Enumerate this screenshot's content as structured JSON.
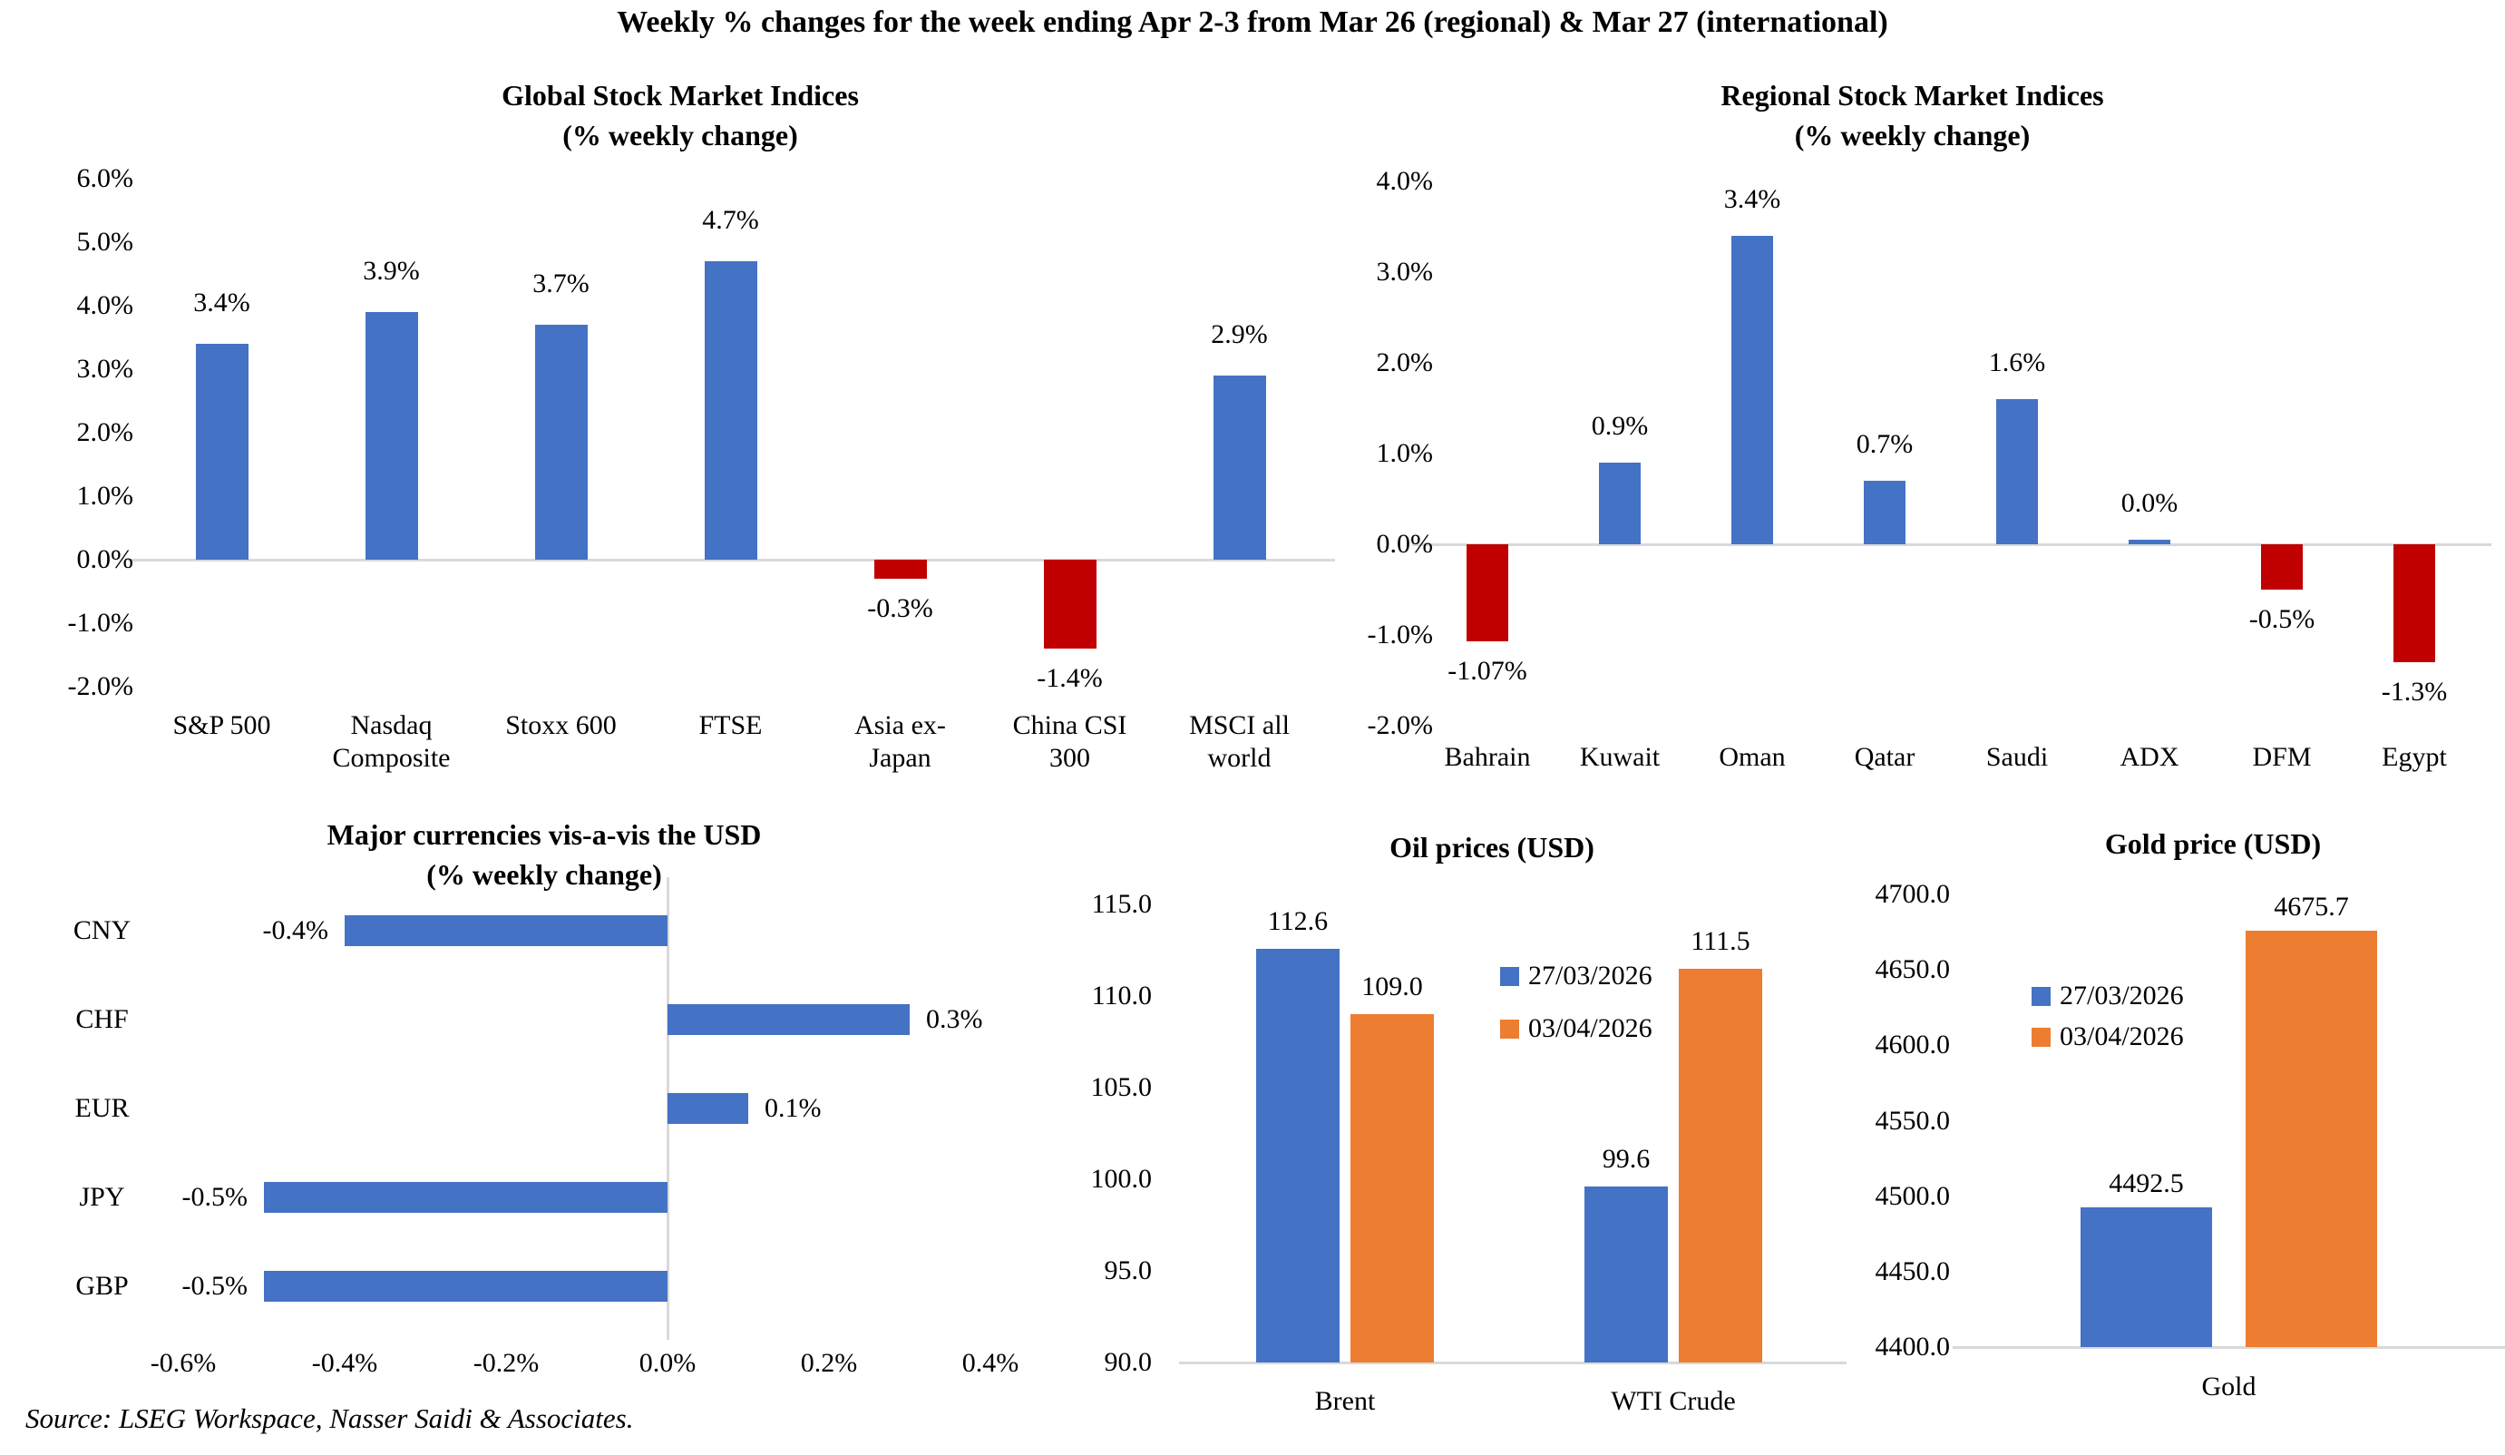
{
  "page": {
    "title": "Weekly % changes for the week ending Apr 2-3 from Mar 26 (regional) & Mar 27 (international)",
    "source": "Source: LSEG Workspace, Nasser Saidi & Associates.",
    "background": "#ffffff"
  },
  "colors": {
    "positive_bar": "#4472C4",
    "negative_bar": "#C00000",
    "series_1": "#4472C4",
    "series_2": "#ED7D31",
    "axis_line": "#D9D9D9",
    "text": "#000000"
  },
  "chart_data": [
    {
      "type": "bar",
      "title": "Global Stock Market Indices",
      "subtitle": "(% weekly change)",
      "categories": [
        "S&P 500",
        "Nasdaq\nComposite",
        "Stoxx 600",
        "FTSE",
        "Asia ex-\nJapan",
        "China CSI\n300",
        "MSCI all\nworld"
      ],
      "values": [
        3.4,
        3.9,
        3.7,
        4.7,
        -0.3,
        -1.4,
        2.9
      ],
      "value_labels": [
        "3.4%",
        "3.9%",
        "3.7%",
        "4.7%",
        "-0.3%",
        "-1.4%",
        "2.9%"
      ],
      "ylim": [
        -2,
        6
      ],
      "ytick_labels": [
        "6.0%",
        "5.0%",
        "4.0%",
        "3.0%",
        "2.0%",
        "1.0%",
        "0.0%",
        "-1.0%",
        "-2.0%"
      ],
      "grid": false,
      "legend": "none",
      "positive_color": "#4472C4",
      "negative_color": "#C00000"
    },
    {
      "type": "bar",
      "title": "Regional Stock Market Indices",
      "subtitle": "(% weekly change)",
      "categories": [
        "Bahrain",
        "Kuwait",
        "Oman",
        "Qatar",
        "Saudi",
        "ADX",
        "DFM",
        "Egypt"
      ],
      "values": [
        -1.07,
        0.9,
        3.4,
        0.7,
        1.6,
        0.0,
        -0.5,
        -1.3
      ],
      "value_labels": [
        "-1.07%",
        "0.9%",
        "3.4%",
        "0.7%",
        "1.6%",
        "0.0%",
        "-0.5%",
        "-1.3%"
      ],
      "ylim": [
        -2,
        4
      ],
      "ytick_labels": [
        "4.0%",
        "3.0%",
        "2.0%",
        "1.0%",
        "0.0%",
        "-1.0%",
        "-2.0%"
      ],
      "grid": false,
      "legend": "none",
      "positive_color": "#4472C4",
      "negative_color": "#C00000"
    },
    {
      "type": "bar",
      "orientation": "horizontal",
      "title": "Major currencies vis-a-vis the USD",
      "subtitle": "(% weekly change)",
      "categories": [
        "CNY",
        "CHF",
        "EUR",
        "JPY",
        "GBP"
      ],
      "values": [
        -0.4,
        0.3,
        0.1,
        -0.5,
        -0.5
      ],
      "value_labels": [
        "-0.4%",
        "0.3%",
        "0.1%",
        "-0.5%",
        "-0.5%"
      ],
      "xlim": [
        -0.6,
        0.4
      ],
      "xtick_labels": [
        "-0.6%",
        "-0.4%",
        "-0.2%",
        "0.0%",
        "0.2%",
        "0.4%"
      ],
      "grid": false,
      "legend": "none",
      "bar_color": "#4472C4"
    },
    {
      "type": "bar",
      "grouping": "grouped",
      "title": "Oil prices (USD)",
      "categories": [
        "Brent",
        "WTI Crude"
      ],
      "series": [
        {
          "name": "27/03/2026",
          "color": "#4472C4",
          "values": [
            112.6,
            99.6
          ],
          "value_labels": [
            "112.6",
            "99.6"
          ]
        },
        {
          "name": "03/04/2026",
          "color": "#ED7D31",
          "values": [
            109.0,
            111.5
          ],
          "value_labels": [
            "109.0",
            "111.5"
          ]
        }
      ],
      "ylim": [
        90,
        115
      ],
      "ytick_labels": [
        "115.0",
        "110.0",
        "105.0",
        "100.0",
        "95.0",
        "90.0"
      ],
      "grid": false,
      "legend_position": "inside-top-right"
    },
    {
      "type": "bar",
      "grouping": "grouped",
      "title": "Gold price (USD)",
      "categories": [
        "Gold"
      ],
      "series": [
        {
          "name": "27/03/2026",
          "color": "#4472C4",
          "values": [
            4492.5
          ],
          "value_labels": [
            "4492.5"
          ]
        },
        {
          "name": "03/04/2026",
          "color": "#ED7D31",
          "values": [
            4675.7
          ],
          "value_labels": [
            "4675.7"
          ]
        }
      ],
      "ylim": [
        4400,
        4700
      ],
      "ytick_labels": [
        "4700.0",
        "4650.0",
        "4600.0",
        "4550.0",
        "4500.0",
        "4450.0",
        "4400.0"
      ],
      "grid": false,
      "legend_position": "inside-upper-left"
    }
  ]
}
